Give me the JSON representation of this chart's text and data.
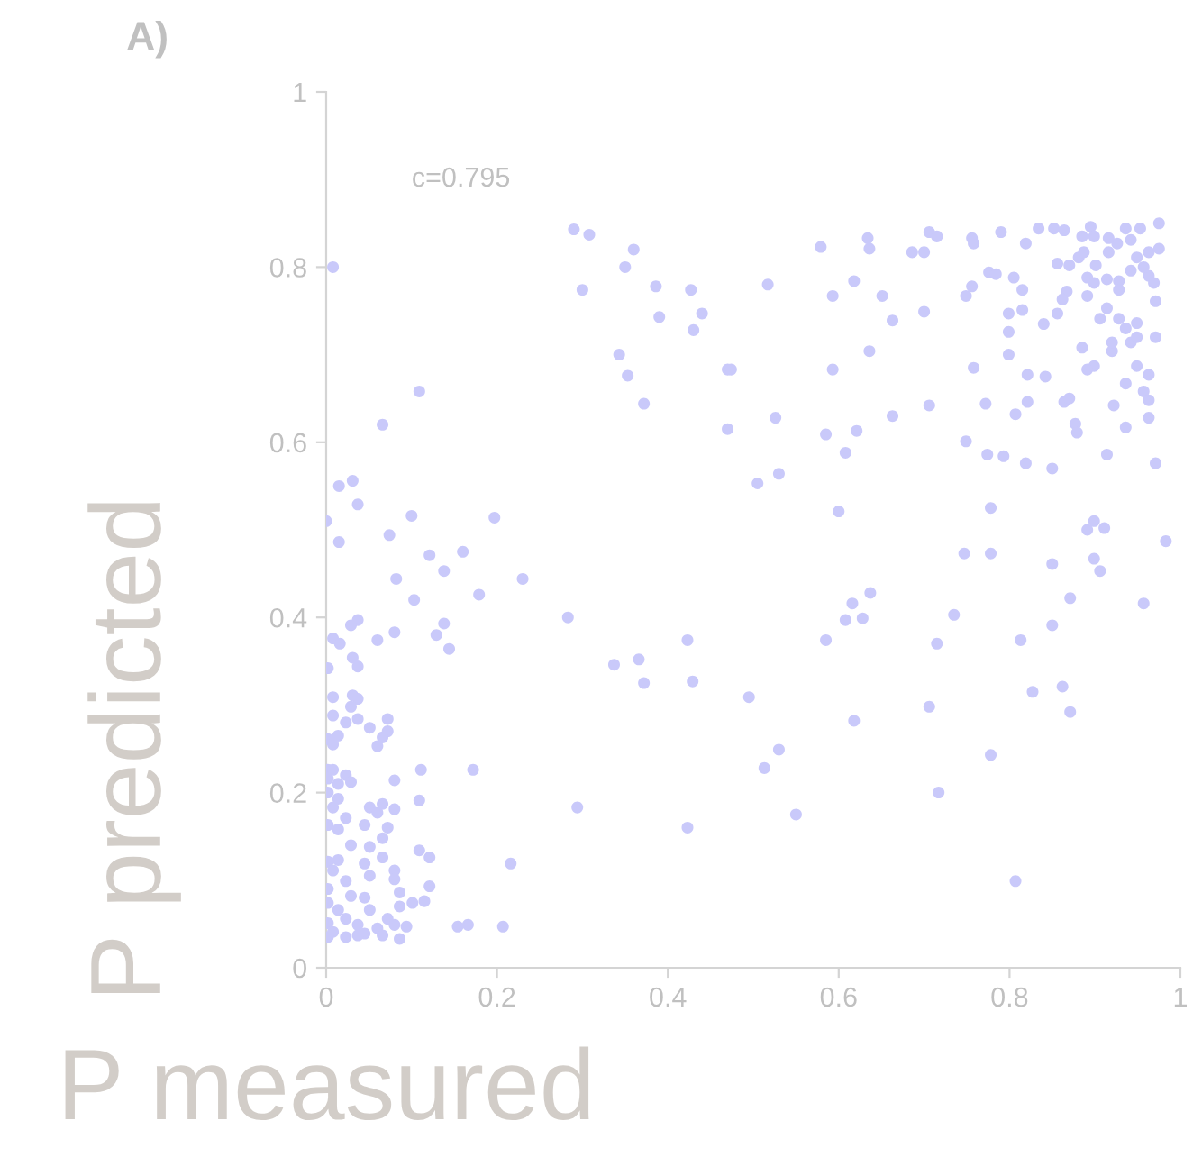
{
  "chart_data": {
    "type": "scatter",
    "title": "A)",
    "xlabel": "P measured",
    "ylabel": "P predicted",
    "annotations": [
      "c=0.795"
    ],
    "xlim": [
      0,
      1
    ],
    "ylim": [
      0,
      1
    ],
    "xticks": [
      0,
      0.2,
      0.4,
      0.6,
      0.8,
      1
    ],
    "yticks": [
      0,
      0.2,
      0.4,
      0.6,
      0.8,
      1
    ],
    "grid": false,
    "legend": false,
    "marker": "circle",
    "series": [
      {
        "color": "#c9c9fa",
        "x": [
          0.008,
          0.29,
          0.308,
          0.36,
          0.35,
          0.3,
          0.386,
          0.39,
          0.427,
          0.44,
          0.43,
          0.343,
          0.353,
          0.372,
          0.47,
          0.47,
          0.109,
          0.066,
          0.015,
          0.031,
          0.037,
          0,
          0.015,
          0.074,
          0.1,
          0.197,
          0.121,
          0.16,
          0.138,
          0.082,
          0.23,
          0.179,
          0.103,
          0.283,
          0.037,
          0.029,
          0.138,
          0.129,
          0.08,
          0.06,
          0.008,
          0.016,
          0.144,
          0.031,
          0.037,
          0.002,
          0.423,
          0.337,
          0.366,
          0.372,
          0.429,
          0.008,
          0.031,
          0.037,
          0.029,
          0.008,
          0.037,
          0.023,
          0.072,
          0.051,
          0.072,
          0.066,
          0.014,
          0.002,
          0.008,
          0.06,
          0.002,
          0.008,
          0.111,
          0.172,
          0.023,
          0.002,
          0.08,
          0.029,
          0.014,
          0.002,
          0.014,
          0.109,
          0.294,
          0.066,
          0.051,
          0.08,
          0.06,
          0.008,
          0.423,
          0.002,
          0.023,
          0.014,
          0.045,
          0.072,
          0.066,
          0.051,
          0.029,
          0.109,
          0.121,
          0.216,
          0.002,
          0.014,
          0.066,
          0.045,
          0.08,
          0.008,
          0.051,
          0.08,
          0.023,
          0.002,
          0.121,
          0.086,
          0.029,
          0.045,
          0.115,
          0.101,
          0.086,
          0.002,
          0.014,
          0.051,
          0.072,
          0.023,
          0.002,
          0.094,
          0.037,
          0.154,
          0.166,
          0.207,
          0.06,
          0.08,
          0.008,
          0.045,
          0.066,
          0.002,
          0.023,
          0.086,
          0.037,
          0.579,
          0.634,
          0.636,
          0.706,
          0.715,
          0.756,
          0.758,
          0.79,
          0.686,
          0.7,
          0.517,
          0.593,
          0.618,
          0.651,
          0.663,
          0.7,
          0.749,
          0.756,
          0.776,
          0.784,
          0.805,
          0.815,
          0.799,
          0.815,
          0.799,
          0.84,
          0.856,
          0.799,
          0.636,
          0.593,
          0.758,
          0.821,
          0.842,
          0.474,
          0.526,
          0.585,
          0.621,
          0.608,
          0.663,
          0.706,
          0.749,
          0.772,
          0.774,
          0.793,
          0.807,
          0.821,
          0.819,
          0.85,
          0.864,
          0.87,
          0.877,
          0.879,
          0.505,
          0.53,
          0.6,
          0.778,
          0.891,
          0.899,
          0.911,
          0.914,
          0.922,
          0.936,
          0.963,
          0.971,
          0.957,
          0.963,
          0.936,
          0.949,
          0.963,
          0.92,
          0.92,
          0.942,
          0.949,
          0.971,
          0.885,
          0.899,
          0.891,
          0.906,
          0.928,
          0.936,
          0.949,
          0.914,
          0.928,
          0.928,
          0.971,
          0.891,
          0.899,
          0.891,
          0.867,
          0.862,
          0.914,
          0.942,
          0.963,
          0.957,
          0.969,
          0.881,
          0.87,
          0.901,
          0.856,
          0.887,
          0.916,
          0.926,
          0.942,
          0.949,
          0.963,
          0.975,
          0.975,
          0.953,
          0.936,
          0.895,
          0.864,
          0.852,
          0.834,
          0.885,
          0.899,
          0.916,
          0.819,
          0.778,
          0.747,
          0.85,
          0.899,
          0.906,
          0.957,
          0.871,
          0.85,
          0.813,
          0.735,
          0.637,
          0.616,
          0.608,
          0.628,
          0.585,
          0.495,
          0.618,
          0.715,
          0.706,
          0.862,
          0.827,
          0.871,
          0.778,
          0.717,
          0.53,
          0.513,
          0.55,
          0.807,
          0.983
        ],
        "values": [
          0.8,
          0.843,
          0.837,
          0.82,
          0.8,
          0.774,
          0.778,
          0.743,
          0.774,
          0.747,
          0.728,
          0.7,
          0.676,
          0.644,
          0.683,
          0.615,
          0.658,
          0.62,
          0.55,
          0.556,
          0.529,
          0.51,
          0.486,
          0.494,
          0.516,
          0.514,
          0.471,
          0.475,
          0.453,
          0.444,
          0.444,
          0.426,
          0.42,
          0.4,
          0.397,
          0.391,
          0.393,
          0.38,
          0.383,
          0.374,
          0.376,
          0.37,
          0.364,
          0.354,
          0.344,
          0.342,
          0.374,
          0.346,
          0.352,
          0.325,
          0.327,
          0.309,
          0.311,
          0.307,
          0.298,
          0.288,
          0.284,
          0.28,
          0.284,
          0.274,
          0.27,
          0.263,
          0.265,
          0.261,
          0.255,
          0.253,
          0.226,
          0.226,
          0.226,
          0.226,
          0.22,
          0.216,
          0.214,
          0.212,
          0.21,
          0.2,
          0.193,
          0.191,
          0.183,
          0.187,
          0.183,
          0.181,
          0.177,
          0.183,
          0.16,
          0.163,
          0.171,
          0.158,
          0.163,
          0.16,
          0.148,
          0.138,
          0.14,
          0.134,
          0.126,
          0.119,
          0.121,
          0.123,
          0.126,
          0.119,
          0.111,
          0.111,
          0.105,
          0.101,
          0.099,
          0.09,
          0.093,
          0.086,
          0.082,
          0.08,
          0.076,
          0.074,
          0.07,
          0.074,
          0.066,
          0.066,
          0.056,
          0.056,
          0.051,
          0.047,
          0.049,
          0.047,
          0.049,
          0.047,
          0.045,
          0.049,
          0.041,
          0.039,
          0.037,
          0.035,
          0.035,
          0.033,
          0.037,
          0.823,
          0.833,
          0.821,
          0.84,
          0.835,
          0.833,
          0.827,
          0.84,
          0.817,
          0.817,
          0.78,
          0.767,
          0.784,
          0.767,
          0.739,
          0.749,
          0.767,
          0.778,
          0.794,
          0.792,
          0.788,
          0.774,
          0.747,
          0.751,
          0.726,
          0.735,
          0.747,
          0.7,
          0.704,
          0.683,
          0.685,
          0.677,
          0.675,
          0.683,
          0.628,
          0.609,
          0.613,
          0.588,
          0.63,
          0.642,
          0.601,
          0.644,
          0.586,
          0.584,
          0.632,
          0.646,
          0.576,
          0.57,
          0.646,
          0.65,
          0.621,
          0.611,
          0.553,
          0.564,
          0.521,
          0.525,
          0.5,
          0.51,
          0.502,
          0.586,
          0.642,
          0.617,
          0.628,
          0.576,
          0.658,
          0.648,
          0.667,
          0.687,
          0.677,
          0.704,
          0.714,
          0.714,
          0.72,
          0.72,
          0.708,
          0.687,
          0.683,
          0.741,
          0.741,
          0.73,
          0.736,
          0.753,
          0.784,
          0.774,
          0.761,
          0.788,
          0.782,
          0.767,
          0.772,
          0.763,
          0.786,
          0.796,
          0.79,
          0.8,
          0.782,
          0.811,
          0.802,
          0.802,
          0.804,
          0.817,
          0.817,
          0.827,
          0.831,
          0.811,
          0.817,
          0.821,
          0.85,
          0.844,
          0.844,
          0.846,
          0.842,
          0.844,
          0.844,
          0.835,
          0.835,
          0.833,
          0.827,
          0.473,
          0.473,
          0.461,
          0.467,
          0.453,
          0.416,
          0.422,
          0.391,
          0.374,
          0.403,
          0.428,
          0.416,
          0.397,
          0.399,
          0.374,
          0.309,
          0.282,
          0.37,
          0.298,
          0.321,
          0.315,
          0.292,
          0.243,
          0.2,
          0.249,
          0.228,
          0.175,
          0.099,
          0.487
        ]
      }
    ]
  }
}
